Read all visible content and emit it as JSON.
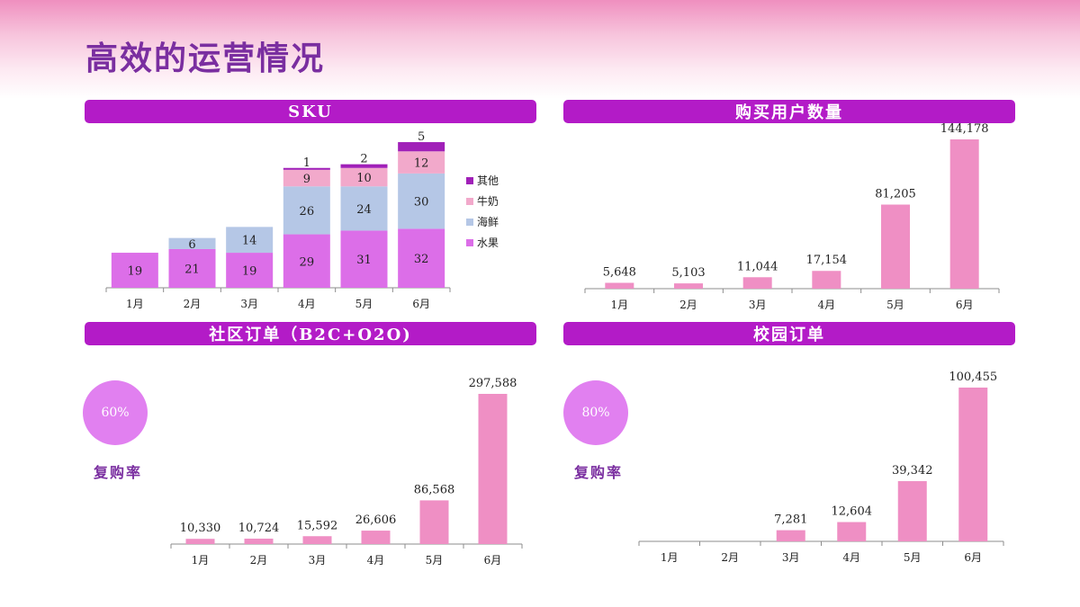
{
  "page_title": "高效的运营情况",
  "colors": {
    "header_bg": "#b31bc7",
    "title": "#7a2ea0",
    "bar_pink": "#ef8fc4",
    "fruit": "#dc6ee8",
    "seafood": "#b5c7e6",
    "milk": "#f2a9cb",
    "other": "#a020b8",
    "circle": "#e180f0"
  },
  "panels": {
    "sku": {
      "title": "SKU"
    },
    "buyers": {
      "title": "购买用户数量"
    },
    "community": {
      "title": "社区订单（B2C+O2O)",
      "rate": "60%",
      "rate_label": "复购率"
    },
    "campus": {
      "title": "校园订单",
      "rate": "80%",
      "rate_label": "复购率"
    }
  },
  "chart_data": [
    {
      "type": "bar",
      "stacked": true,
      "title": "SKU",
      "categories": [
        "1月",
        "2月",
        "3月",
        "4月",
        "5月",
        "6月"
      ],
      "series": [
        {
          "name": "水果",
          "values": [
            19,
            21,
            19,
            29,
            31,
            32
          ]
        },
        {
          "name": "海鲜",
          "values": [
            null,
            6,
            14,
            26,
            24,
            30
          ]
        },
        {
          "name": "牛奶",
          "values": [
            null,
            null,
            null,
            9,
            10,
            12
          ]
        },
        {
          "name": "其他",
          "values": [
            null,
            null,
            null,
            1,
            2,
            5
          ]
        }
      ],
      "legend": [
        "其他",
        "牛奶",
        "海鲜",
        "水果"
      ],
      "legend_position": "right"
    },
    {
      "type": "bar",
      "title": "购买用户数量",
      "categories": [
        "1月",
        "2月",
        "3月",
        "4月",
        "5月",
        "6月"
      ],
      "values": [
        5648,
        5103,
        11044,
        17154,
        81205,
        144178
      ],
      "labels": [
        "5,648",
        "5,103",
        "11,044",
        "17,154",
        "81,205",
        "144,178"
      ]
    },
    {
      "type": "bar",
      "title": "社区订单（B2C+O2O)",
      "categories": [
        "1月",
        "2月",
        "3月",
        "4月",
        "5月",
        "6月"
      ],
      "values": [
        10330,
        10724,
        15592,
        26606,
        86568,
        297588
      ],
      "labels": [
        "10,330",
        "10,724",
        "15,592",
        "26,606",
        "86,568",
        "297,588"
      ]
    },
    {
      "type": "bar",
      "title": "校园订单",
      "categories": [
        "1月",
        "2月",
        "3月",
        "4月",
        "5月",
        "6月"
      ],
      "values": [
        null,
        null,
        7281,
        12604,
        39342,
        100455
      ],
      "labels": [
        "",
        "",
        "7,281",
        "12,604",
        "39,342",
        "100,455"
      ]
    }
  ]
}
